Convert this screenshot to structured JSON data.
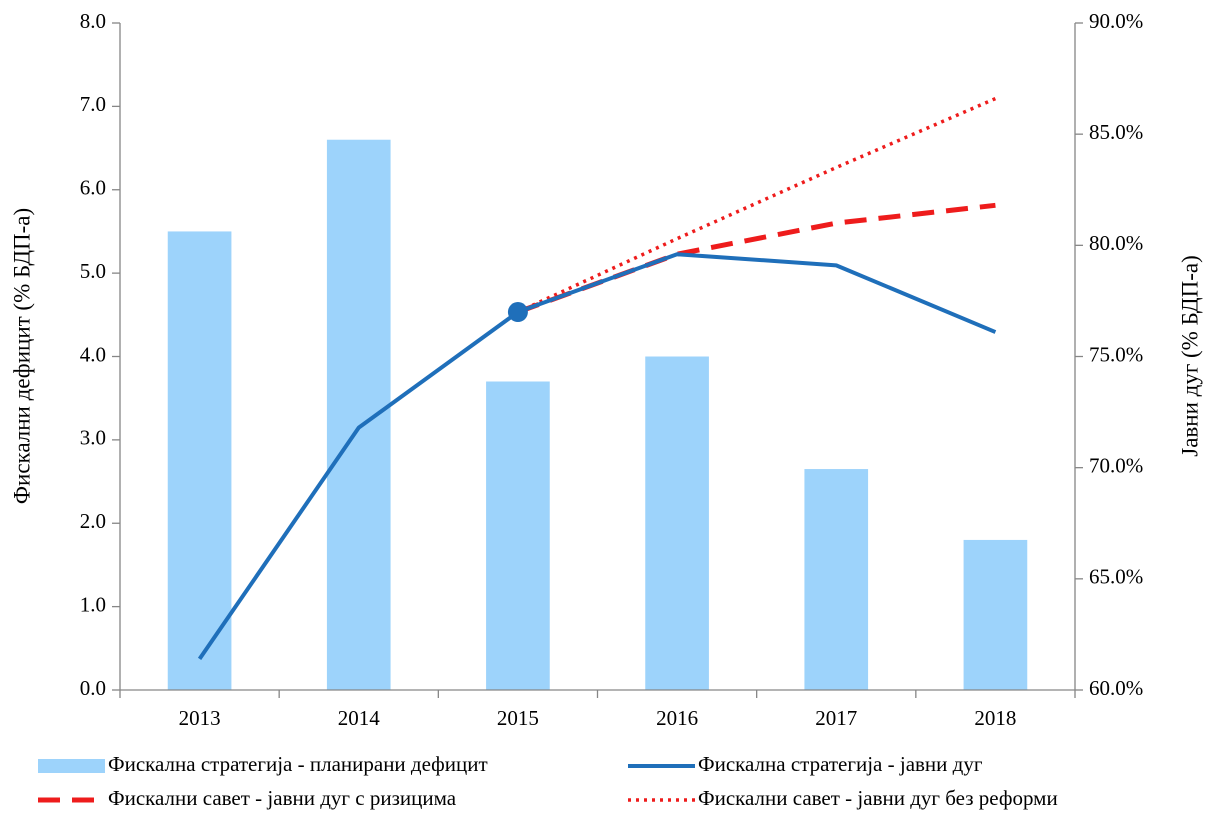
{
  "chart_data": {
    "type": "bar",
    "categories": [
      "2013",
      "2014",
      "2015",
      "2016",
      "2017",
      "2018"
    ],
    "ylabel": "Фискални дефицит (% БДП-а)",
    "y2label": "Јавни дуг (% БДП-а)",
    "ylim": [
      0,
      8
    ],
    "yticks": [
      {
        "value": 0,
        "label": "0.0"
      },
      {
        "value": 1,
        "label": "1.0"
      },
      {
        "value": 2,
        "label": "2.0"
      },
      {
        "value": 3,
        "label": "3.0"
      },
      {
        "value": 4,
        "label": "4.0"
      },
      {
        "value": 5,
        "label": "5.0"
      },
      {
        "value": 6,
        "label": "6.0"
      },
      {
        "value": 7,
        "label": "7.0"
      },
      {
        "value": 8,
        "label": "8.0"
      }
    ],
    "y2lim": [
      60,
      90
    ],
    "y2ticks": [
      {
        "value": 60,
        "label": "60.0%"
      },
      {
        "value": 65,
        "label": "65.0%"
      },
      {
        "value": 70,
        "label": "70.0%"
      },
      {
        "value": 75,
        "label": "75.0%"
      },
      {
        "value": 80,
        "label": "80.0%"
      },
      {
        "value": 85,
        "label": "85.0%"
      },
      {
        "value": 90,
        "label": "90.0%"
      }
    ],
    "legend": "bottom",
    "series": [
      {
        "name": "Фискална стратегија - планирани дефицит",
        "type": "bar",
        "color": "#9dd3fb",
        "values": [
          5.5,
          6.6,
          3.7,
          4.0,
          2.65,
          1.8
        ]
      },
      {
        "name": "Фискална стратегија - јавни дуг",
        "type": "line",
        "style": "solid",
        "axis": "y2",
        "color": "#1f6fba",
        "values": [
          61.4,
          71.8,
          77.0,
          79.6,
          79.1,
          76.1
        ]
      },
      {
        "name": "Фискални савет - јавни дуг с ризицима",
        "type": "line",
        "style": "dashed",
        "axis": "y2",
        "color": "#ee1c1c",
        "values": [
          null,
          null,
          77.0,
          79.6,
          81.0,
          81.8
        ]
      },
      {
        "name": "Фискални савет - јавни дуг без реформи",
        "type": "line",
        "style": "dotted",
        "axis": "y2",
        "color": "#ee1c1c",
        "values": [
          null,
          null,
          77.0,
          80.3,
          83.5,
          86.6
        ]
      }
    ]
  }
}
